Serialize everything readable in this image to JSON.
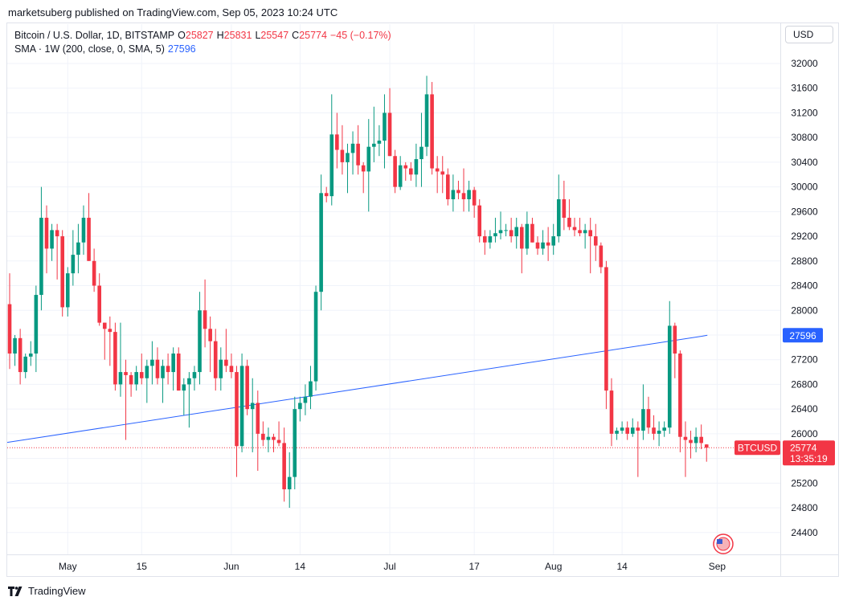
{
  "publisher": "marketsuberg published on TradingView.com, Sep 05, 2023 10:24 UTC",
  "legend": {
    "symbol": "Bitcoin / U.S. Dollar, 1D, BITSTAMP",
    "o_label": "O",
    "o_value": "25827",
    "h_label": "H",
    "h_value": "25831",
    "l_label": "L",
    "l_value": "25547",
    "c_label": "C",
    "c_value": "25774",
    "change": "−45 (−0.17%)",
    "sma_label": "SMA · 1W (200, close, 0, SMA, 5)",
    "sma_value": "27596"
  },
  "currency_button": "USD",
  "price_tag": {
    "symbol": "BTCUSD",
    "price": "25774",
    "countdown": "13:35:19"
  },
  "sma_tag": "27596",
  "footer": {
    "brand": "TradingView"
  },
  "colors": {
    "up": "#089981",
    "down": "#f23645",
    "sma": "#2962ff",
    "grid": "#f0f3fa",
    "text": "#131722"
  },
  "chart_data": {
    "type": "candlestick",
    "title": "Bitcoin / U.S. Dollar, 1D, BITSTAMP",
    "ylim": [
      24000,
      32400
    ],
    "yticks": [
      24400,
      24800,
      25200,
      25600,
      26000,
      26400,
      26800,
      27200,
      27600,
      28000,
      28400,
      28800,
      29200,
      29600,
      30000,
      30400,
      30800,
      31200,
      31600,
      32000
    ],
    "x_ticks": [
      {
        "label": "May",
        "index": 11
      },
      {
        "label": "15",
        "index": 25
      },
      {
        "label": "Jun",
        "index": 42
      },
      {
        "label": "14",
        "index": 55
      },
      {
        "label": "Jul",
        "index": 72
      },
      {
        "label": "17",
        "index": 88
      },
      {
        "label": "Aug",
        "index": 103
      },
      {
        "label": "14",
        "index": 116
      },
      {
        "label": "Sep",
        "index": 134
      }
    ],
    "last_close": 25774,
    "ohlc": [
      [
        28100,
        28600,
        27050,
        27300
      ],
      [
        27300,
        27600,
        27100,
        27550
      ],
      [
        27550,
        27700,
        26800,
        27000
      ],
      [
        27000,
        27300,
        26900,
        27250
      ],
      [
        27250,
        27500,
        27100,
        27300
      ],
      [
        27300,
        28400,
        27000,
        28250
      ],
      [
        28250,
        30000,
        28000,
        29500
      ],
      [
        29500,
        29700,
        28600,
        29000
      ],
      [
        29000,
        29400,
        28800,
        29300
      ],
      [
        29300,
        29400,
        28500,
        29200
      ],
      [
        29200,
        29300,
        27900,
        28050
      ],
      [
        28050,
        28700,
        27900,
        28600
      ],
      [
        28600,
        29300,
        28400,
        28900
      ],
      [
        28900,
        29400,
        28600,
        29100
      ],
      [
        29100,
        29700,
        28900,
        29500
      ],
      [
        29500,
        29900,
        28800,
        28800
      ],
      [
        28800,
        29000,
        28300,
        28400
      ],
      [
        28400,
        28600,
        27750,
        27800
      ],
      [
        27800,
        27800,
        27200,
        27700
      ],
      [
        27700,
        27900,
        27100,
        27650
      ],
      [
        27650,
        27800,
        26700,
        26800
      ],
      [
        26800,
        27800,
        26600,
        27000
      ],
      [
        27000,
        27200,
        25900,
        26950
      ],
      [
        26950,
        27000,
        26600,
        26800
      ],
      [
        26800,
        27100,
        26700,
        27000
      ],
      [
        27000,
        27300,
        26800,
        26900
      ],
      [
        26900,
        27200,
        26500,
        27100
      ],
      [
        27100,
        27500,
        26800,
        27200
      ],
      [
        27200,
        27400,
        26800,
        26900
      ],
      [
        26900,
        27200,
        26500,
        27100
      ],
      [
        27100,
        27300,
        26800,
        27000
      ],
      [
        27000,
        27400,
        26700,
        27300
      ],
      [
        27300,
        27400,
        26700,
        26700
      ],
      [
        26700,
        26900,
        26300,
        26800
      ],
      [
        26800,
        27000,
        26100,
        26900
      ],
      [
        26900,
        27100,
        26700,
        27000
      ],
      [
        27000,
        28300,
        26800,
        28000
      ],
      [
        28000,
        28500,
        27400,
        27700
      ],
      [
        27700,
        27900,
        27000,
        27500
      ],
      [
        27500,
        27700,
        26700,
        26900
      ],
      [
        26900,
        27400,
        26700,
        27200
      ],
      [
        27200,
        27700,
        27000,
        27100
      ],
      [
        27100,
        27300,
        26900,
        27000
      ],
      [
        27000,
        27100,
        25300,
        25800
      ],
      [
        25800,
        27300,
        25700,
        27100
      ],
      [
        27100,
        27200,
        26300,
        26400
      ],
      [
        26400,
        26900,
        25700,
        26500
      ],
      [
        26500,
        26700,
        25400,
        26000
      ],
      [
        26000,
        26200,
        25800,
        25900
      ],
      [
        25900,
        26100,
        25700,
        25950
      ],
      [
        25950,
        26000,
        25700,
        25900
      ],
      [
        25900,
        26200,
        25800,
        25850
      ],
      [
        25850,
        26100,
        24900,
        25100
      ],
      [
        25100,
        25700,
        24800,
        25300
      ],
      [
        25300,
        26600,
        25100,
        26400
      ],
      [
        26400,
        26600,
        26200,
        26500
      ],
      [
        26500,
        26800,
        26300,
        26600
      ],
      [
        26600,
        27100,
        26400,
        26850
      ],
      [
        26850,
        28400,
        26700,
        28300
      ],
      [
        28300,
        30200,
        28000,
        29900
      ],
      [
        29900,
        30000,
        29750,
        29850
      ],
      [
        29850,
        31500,
        29700,
        30850
      ],
      [
        30850,
        31200,
        30300,
        30600
      ],
      [
        30600,
        31000,
        30200,
        30400
      ],
      [
        30400,
        30700,
        29900,
        30550
      ],
      [
        30550,
        30900,
        30200,
        30700
      ],
      [
        30700,
        31000,
        30200,
        30350
      ],
      [
        30350,
        30400,
        29900,
        30250
      ],
      [
        30250,
        31100,
        29600,
        30650
      ],
      [
        30650,
        31300,
        30400,
        30700
      ],
      [
        30700,
        31000,
        30500,
        30750
      ],
      [
        30750,
        31500,
        30300,
        31200
      ],
      [
        31200,
        31600,
        30500,
        30500
      ],
      [
        30500,
        30600,
        29900,
        30000
      ],
      [
        30000,
        30500,
        29950,
        30350
      ],
      [
        30350,
        30400,
        30100,
        30300
      ],
      [
        30300,
        30400,
        30100,
        30200
      ],
      [
        30200,
        30700,
        30000,
        30450
      ],
      [
        30450,
        31200,
        30000,
        30650
      ],
      [
        30650,
        31800,
        30500,
        31500
      ],
      [
        31500,
        31700,
        30200,
        30300
      ],
      [
        30300,
        30500,
        29900,
        30250
      ],
      [
        30250,
        30500,
        29900,
        30200
      ],
      [
        30200,
        30300,
        29700,
        29800
      ],
      [
        29800,
        30200,
        29600,
        29950
      ],
      [
        29950,
        30100,
        29800,
        29900
      ],
      [
        29900,
        30300,
        29600,
        29800
      ],
      [
        29800,
        30100,
        29600,
        29950
      ],
      [
        29950,
        30000,
        29500,
        29700
      ],
      [
        29700,
        29800,
        29100,
        29200
      ],
      [
        29200,
        29300,
        28900,
        29100
      ],
      [
        29100,
        29300,
        29000,
        29200
      ],
      [
        29200,
        29500,
        29100,
        29250
      ],
      [
        29250,
        29600,
        29150,
        29300
      ],
      [
        29300,
        29400,
        29200,
        29300
      ],
      [
        29300,
        29500,
        29100,
        29200
      ],
      [
        29200,
        29500,
        29000,
        29350
      ],
      [
        29350,
        29400,
        28600,
        29000
      ],
      [
        29000,
        29600,
        28900,
        29400
      ],
      [
        29400,
        29500,
        29100,
        29100
      ],
      [
        29100,
        29200,
        28900,
        29000
      ],
      [
        29000,
        29300,
        28900,
        29100
      ],
      [
        29100,
        29350,
        28800,
        29050
      ],
      [
        29050,
        29400,
        28900,
        29200
      ],
      [
        29200,
        30200,
        29100,
        29800
      ],
      [
        29800,
        30100,
        29300,
        29500
      ],
      [
        29500,
        29800,
        29300,
        29350
      ],
      [
        29350,
        29500,
        29200,
        29300
      ],
      [
        29300,
        29500,
        29200,
        29250
      ],
      [
        29250,
        29400,
        29000,
        29300
      ],
      [
        29300,
        29500,
        28600,
        29200
      ],
      [
        29200,
        29400,
        28800,
        29050
      ],
      [
        29050,
        29100,
        28600,
        28700
      ],
      [
        28700,
        28800,
        26400,
        26700
      ],
      [
        26700,
        26900,
        25800,
        26000
      ],
      [
        26000,
        26100,
        25900,
        26050
      ],
      [
        26050,
        26200,
        26000,
        26100
      ],
      [
        26100,
        26200,
        25900,
        26000
      ],
      [
        26000,
        26250,
        25950,
        26100
      ],
      [
        26100,
        26200,
        25300,
        26050
      ],
      [
        26050,
        26800,
        25900,
        26400
      ],
      [
        26400,
        26600,
        26000,
        26100
      ],
      [
        26100,
        26300,
        25900,
        26000
      ],
      [
        26000,
        26200,
        25800,
        26050
      ],
      [
        26050,
        26200,
        25950,
        26100
      ],
      [
        26100,
        28150,
        26000,
        27750
      ],
      [
        27750,
        27800,
        26900,
        27300
      ],
      [
        27300,
        27350,
        25700,
        25950
      ],
      [
        25950,
        26200,
        25300,
        25900
      ],
      [
        25900,
        26050,
        25600,
        25850
      ],
      [
        25850,
        26100,
        25700,
        25950
      ],
      [
        25950,
        26150,
        25750,
        25850
      ],
      [
        25827,
        25831,
        25547,
        25774
      ]
    ],
    "sma": {
      "name": "SMA · 1W (200, close, 0, SMA, 5)",
      "start": 25860,
      "end": 27580,
      "end_label": 27596
    }
  }
}
